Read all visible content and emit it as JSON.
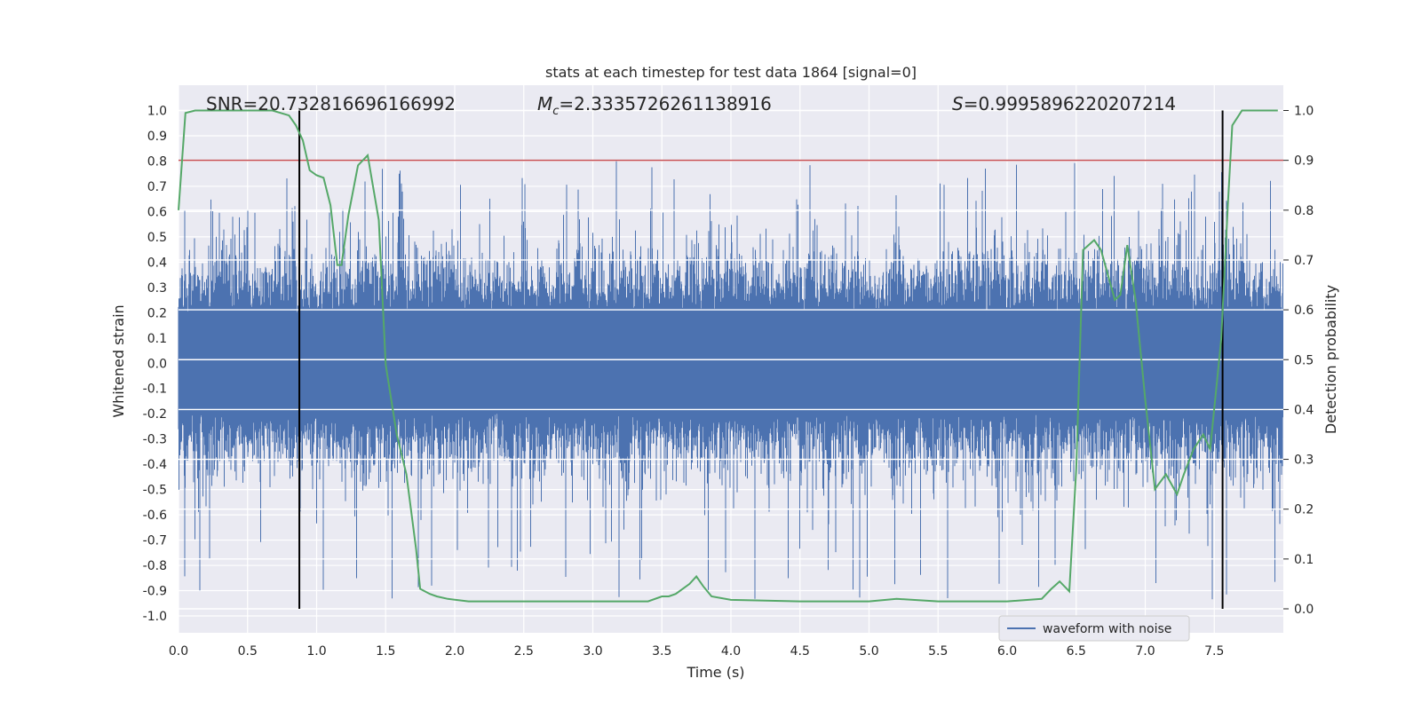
{
  "chart_data": {
    "type": "line",
    "title": "stats at each timestep for test data 1864 [signal=0]",
    "xlabel": "Time (s)",
    "ylabel": "Whitened strain",
    "y2label": "Detection probability",
    "xlim": [
      0.0,
      8.0
    ],
    "ylim": [
      -1.08,
      1.1
    ],
    "y2lim": [
      -0.05,
      1.05
    ],
    "xticks": [
      "0.0",
      "0.5",
      "1.0",
      "1.5",
      "2.0",
      "2.5",
      "3.0",
      "3.5",
      "4.0",
      "4.5",
      "5.0",
      "5.5",
      "6.0",
      "6.5",
      "7.0",
      "7.5"
    ],
    "yticks": [
      "1.0",
      "0.9",
      "0.8",
      "0.7",
      "0.6",
      "0.5",
      "0.4",
      "0.3",
      "0.2",
      "0.1",
      "0.0",
      "-0.1",
      "-0.2",
      "-0.3",
      "-0.4",
      "-0.5",
      "-0.6",
      "-0.7",
      "-0.8",
      "-0.9",
      "-1.0"
    ],
    "y2ticks": [
      "1.0",
      "0.9",
      "0.8",
      "0.7",
      "0.6",
      "0.5",
      "0.4",
      "0.3",
      "0.2",
      "0.1",
      "0.0"
    ],
    "grid": true,
    "legend": {
      "label": "waveform with noise",
      "placement": "bottom-right"
    },
    "annotations": {
      "snr": "SNR=20.732816696166992",
      "mc_symbol": "M",
      "mc_sub": "c",
      "mc_value": "=2.3335726261138916",
      "s_symbol": "S",
      "s_value": "=0.9995896220207214"
    },
    "threshold": {
      "axis": "y2",
      "value": 0.9
    },
    "vlines": [
      0.875,
      7.56
    ],
    "waveform": {
      "name": "waveform with noise",
      "description": "dense Gaussian noise, core amplitude about ±0.2, spikes up to about ±0.8",
      "core_amplitude": 0.2,
      "spikes_max": 0.8,
      "spikes_min": -0.95
    },
    "series": [
      {
        "name": "Detection probability",
        "axis": "y2",
        "x": [
          0.0,
          0.05,
          0.12,
          0.25,
          0.5,
          0.68,
          0.8,
          0.85,
          0.9,
          0.95,
          1.0,
          1.05,
          1.1,
          1.15,
          1.18,
          1.23,
          1.3,
          1.37,
          1.45,
          1.5,
          1.58,
          1.65,
          1.72,
          1.75,
          1.82,
          1.87,
          1.95,
          2.1,
          2.5,
          3.0,
          3.4,
          3.5,
          3.55,
          3.6,
          3.7,
          3.75,
          3.8,
          3.86,
          4.0,
          4.5,
          5.0,
          5.2,
          5.5,
          6.0,
          6.25,
          6.32,
          6.38,
          6.45,
          6.5,
          6.55,
          6.63,
          6.68,
          6.73,
          6.78,
          6.82,
          6.87,
          6.93,
          7.0,
          7.07,
          7.15,
          7.23,
          7.28,
          7.35,
          7.42,
          7.47,
          7.55,
          7.6,
          7.63,
          7.7,
          7.8,
          7.96
        ],
        "values": [
          0.8,
          0.995,
          1.0,
          1.0,
          1.0,
          1.0,
          0.99,
          0.97,
          0.94,
          0.88,
          0.87,
          0.865,
          0.81,
          0.69,
          0.69,
          0.79,
          0.89,
          0.91,
          0.78,
          0.49,
          0.35,
          0.27,
          0.12,
          0.04,
          0.03,
          0.025,
          0.02,
          0.015,
          0.015,
          0.015,
          0.015,
          0.025,
          0.025,
          0.03,
          0.05,
          0.065,
          0.045,
          0.025,
          0.018,
          0.015,
          0.015,
          0.02,
          0.015,
          0.015,
          0.02,
          0.04,
          0.055,
          0.035,
          0.28,
          0.72,
          0.74,
          0.72,
          0.67,
          0.62,
          0.63,
          0.73,
          0.62,
          0.42,
          0.24,
          0.27,
          0.23,
          0.27,
          0.32,
          0.35,
          0.32,
          0.54,
          0.82,
          0.97,
          1.0,
          1.0,
          1.0
        ]
      }
    ]
  }
}
